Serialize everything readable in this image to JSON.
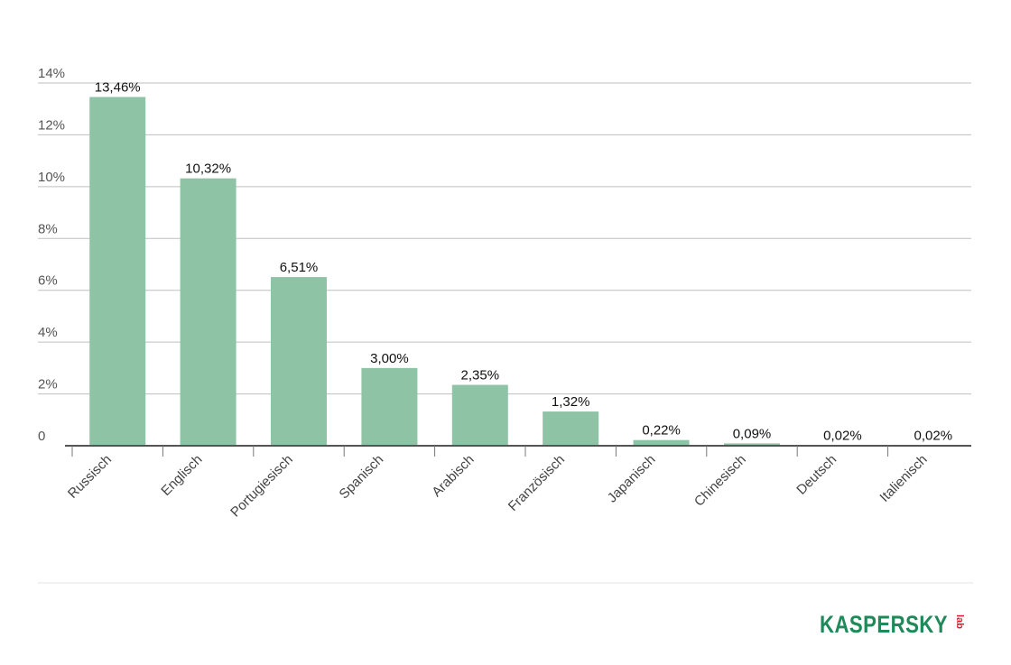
{
  "chart_data": {
    "type": "bar",
    "categories": [
      "Russisch",
      "Englisch",
      "Portugiesisch",
      "Spanisch",
      "Arabisch",
      "Französisch",
      "Japanisch",
      "Chinesisch",
      "Deutsch",
      "Italienisch"
    ],
    "values": [
      13.46,
      10.32,
      6.51,
      3.0,
      2.35,
      1.32,
      0.22,
      0.09,
      0.02,
      0.02
    ],
    "data_labels": [
      "13,46%",
      "10,32%",
      "6,51%",
      "3,00%",
      "2,35%",
      "1,32%",
      "0,22%",
      "0,09%",
      "0,02%",
      "0,02%"
    ],
    "yticks": [
      0,
      2,
      4,
      6,
      8,
      10,
      12,
      14
    ],
    "ytick_labels": [
      "0",
      "2%",
      "4%",
      "6%",
      "8%",
      "10%",
      "12%",
      "14%"
    ],
    "ylim": [
      0,
      14
    ],
    "title": "",
    "xlabel": "",
    "ylabel": "",
    "grid": true,
    "bar_color": "#8fc3a5"
  },
  "logo": {
    "text": "KASPERSKY",
    "sub": "lab",
    "color": "#1e8a5a",
    "accent": "#e21b2d"
  }
}
